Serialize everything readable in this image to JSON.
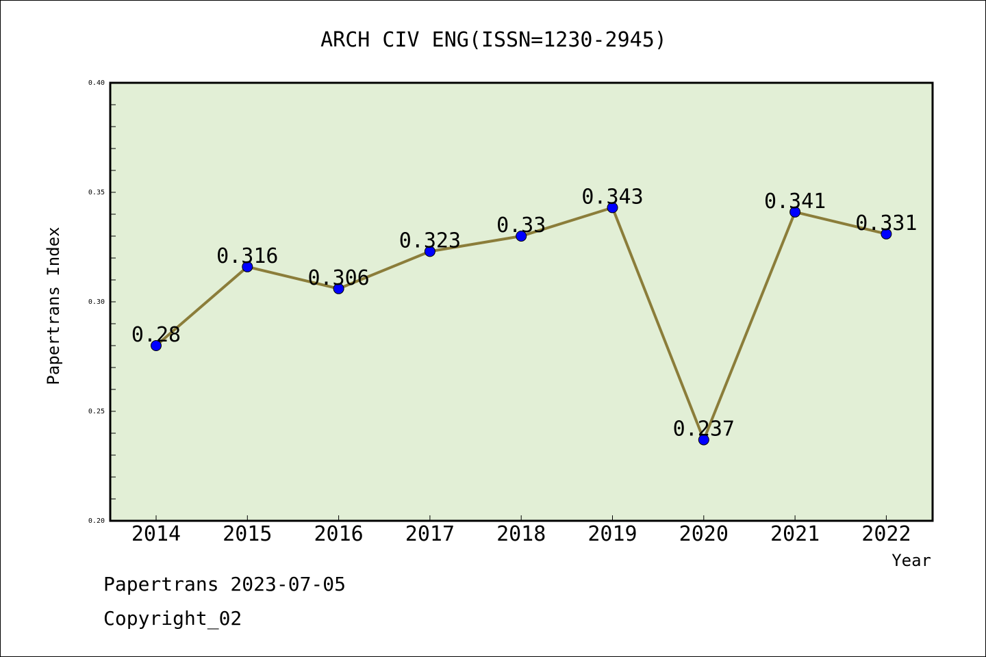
{
  "chart_data": {
    "type": "line",
    "title": "ARCH CIV ENG(ISSN=1230-2945)",
    "xlabel": "Year",
    "ylabel": "Papertrans Index",
    "x": [
      "2014",
      "2015",
      "2016",
      "2017",
      "2018",
      "2019",
      "2020",
      "2021",
      "2022"
    ],
    "values": [
      0.28,
      0.316,
      0.306,
      0.323,
      0.33,
      0.343,
      0.237,
      0.341,
      0.331
    ],
    "data_labels": [
      "0.28",
      "0.316",
      "0.306",
      "0.323",
      "0.33",
      "0.343",
      "0.237",
      "0.341",
      "0.331"
    ],
    "ylim": [
      0.2,
      0.4
    ],
    "yticks": [
      "0.20",
      "0.25",
      "0.30",
      "0.35",
      "0.40"
    ],
    "grid": false,
    "colors": {
      "plot_background": "#e2efd6",
      "line": "#8b7d3a",
      "marker": "#0000ff"
    }
  },
  "footer": {
    "line1": "Papertrans 2023-07-05",
    "line2": "Copyright_02"
  }
}
